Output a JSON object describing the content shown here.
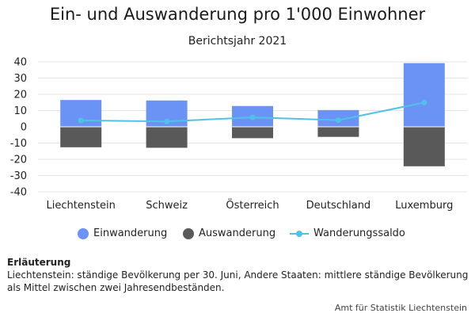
{
  "title": "Ein- und Auswanderung pro 1'000 Einwohner",
  "subtitle": "Berichtsjahr 2021",
  "colors": {
    "einwanderung": "#6b93f5",
    "auswanderung": "#595959",
    "saldo": "#4fc3e6",
    "grid": "#e4e4e4"
  },
  "chart_data": {
    "type": "bar",
    "stacked": true,
    "categories": [
      "Liechtenstein",
      "Schweiz",
      "Österreich",
      "Deutschland",
      "Luxemburg"
    ],
    "series": [
      {
        "name": "Einwanderung",
        "type": "bar",
        "values": [
          16.5,
          16.2,
          12.8,
          10.3,
          39.2
        ]
      },
      {
        "name": "Auswanderung",
        "type": "bar",
        "values": [
          -12.6,
          -12.9,
          -7.0,
          -6.2,
          -24.3
        ]
      },
      {
        "name": "Wanderungssaldo",
        "type": "line",
        "values": [
          3.9,
          3.3,
          5.8,
          4.1,
          14.9
        ]
      }
    ],
    "yticks": [
      "40",
      "30",
      "20",
      "10",
      "0",
      "-10",
      "-20",
      "-30",
      "-40"
    ],
    "ylim": [
      -40,
      40
    ],
    "grid": true,
    "legend_position": "bottom"
  },
  "note": {
    "heading": "Erläuterung",
    "text": "Liechtenstein: ständige Bevölkerung per 30. Juni, Andere Staaten: mittlere ständige Bevölkerung als Mittel zwischen zwei Jahresendbeständen."
  },
  "credit": "Amt für Statistik Liechtenstein"
}
